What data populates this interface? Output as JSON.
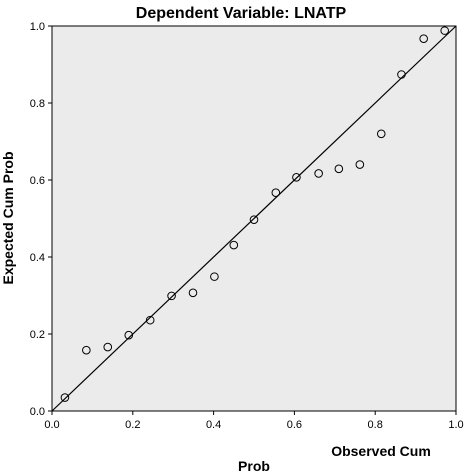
{
  "chart_data": {
    "type": "scatter",
    "title": "Dependent Variable: LNATP",
    "xlabel_line1": "Observed Cum",
    "xlabel_line2": "Prob",
    "ylabel": "Expected Cum Prob",
    "xlim": [
      0.0,
      1.0
    ],
    "ylim": [
      0.0,
      1.0
    ],
    "xticks": [
      "0.0",
      "0.2",
      "0.4",
      "0.6",
      "0.8",
      "1.0"
    ],
    "yticks": [
      "0.0",
      "0.2",
      "0.4",
      "0.6",
      "0.8",
      "1.0"
    ],
    "reference_line": [
      [
        0.0,
        0.0
      ],
      [
        1.0,
        1.0
      ]
    ],
    "grid": false,
    "marker": "open-circle",
    "points": [
      {
        "x": 0.032,
        "y": 0.035
      },
      {
        "x": 0.085,
        "y": 0.158
      },
      {
        "x": 0.138,
        "y": 0.166
      },
      {
        "x": 0.19,
        "y": 0.197
      },
      {
        "x": 0.243,
        "y": 0.236
      },
      {
        "x": 0.296,
        "y": 0.299
      },
      {
        "x": 0.349,
        "y": 0.307
      },
      {
        "x": 0.402,
        "y": 0.349
      },
      {
        "x": 0.45,
        "y": 0.431
      },
      {
        "x": 0.5,
        "y": 0.497
      },
      {
        "x": 0.554,
        "y": 0.567
      },
      {
        "x": 0.605,
        "y": 0.607
      },
      {
        "x": 0.66,
        "y": 0.617
      },
      {
        "x": 0.71,
        "y": 0.629
      },
      {
        "x": 0.762,
        "y": 0.64
      },
      {
        "x": 0.815,
        "y": 0.72
      },
      {
        "x": 0.865,
        "y": 0.874
      },
      {
        "x": 0.92,
        "y": 0.967
      },
      {
        "x": 0.972,
        "y": 0.988
      }
    ]
  }
}
